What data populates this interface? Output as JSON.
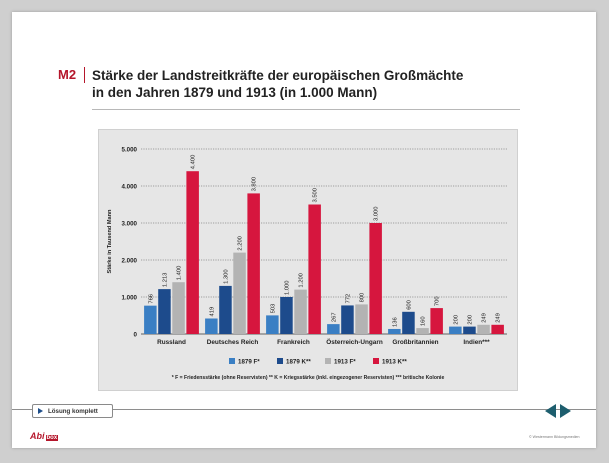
{
  "header": {
    "label": "M2",
    "title_line1": "Stärke der Landstreitkräfte der europäischen Großmächte",
    "title_line2": "in den Jahren 1879 und 1913 (in 1.000 Mann)"
  },
  "footer": {
    "solution_button": "Lösung komplett",
    "logo_text": "Abi",
    "logo_box": "box",
    "copyright": "© Westermann Bildungsmedien"
  },
  "colors": {
    "accent": "#b5162b",
    "series_1879F": "#3a7fc4",
    "series_1879K": "#1d4b8c",
    "series_1913F": "#b3b3b3",
    "series_1913K": "#d6163e"
  },
  "chart_data": {
    "type": "bar",
    "title": "",
    "ylabel": "Stärke in Tausend Mann",
    "xlabel": "",
    "ylim": [
      0,
      5000
    ],
    "yticks": [
      "0",
      "1.000",
      "2.000",
      "3.000",
      "4.000",
      "5.000"
    ],
    "grid": true,
    "categories": [
      "Russland",
      "Deutsches Reich",
      "Frankreich",
      "Österreich-Ungarn",
      "Großbritannien",
      "Indien***"
    ],
    "series": [
      {
        "name": "1879 F*",
        "values": [
          766,
          419,
          503,
          267,
          136,
          200
        ],
        "labels": [
          "766",
          "419",
          "503",
          "267",
          "136",
          "200"
        ]
      },
      {
        "name": "1879 K**",
        "values": [
          1213,
          1300,
          1000,
          772,
          600,
          200
        ],
        "labels": [
          "1.213",
          "1.300",
          "1.000",
          "772",
          "600",
          "200"
        ]
      },
      {
        "name": "1913 F*",
        "values": [
          1400,
          2200,
          1200,
          800,
          160,
          249
        ],
        "labels": [
          "1.400",
          "2.200",
          "1.200",
          "800",
          "160",
          "249"
        ]
      },
      {
        "name": "1913 K**",
        "values": [
          4400,
          3800,
          3500,
          3000,
          700,
          249
        ],
        "labels": [
          "4.400",
          "3.800",
          "3.500",
          "3.000",
          "700",
          "249"
        ]
      }
    ],
    "legend_placement": "bottom",
    "footnote": "* F = Friedensstärke (ohne Reservisten)   ** K = Kriegsstärke (inkl. eingezogener Reservisten)   *** britische Kolonie"
  }
}
